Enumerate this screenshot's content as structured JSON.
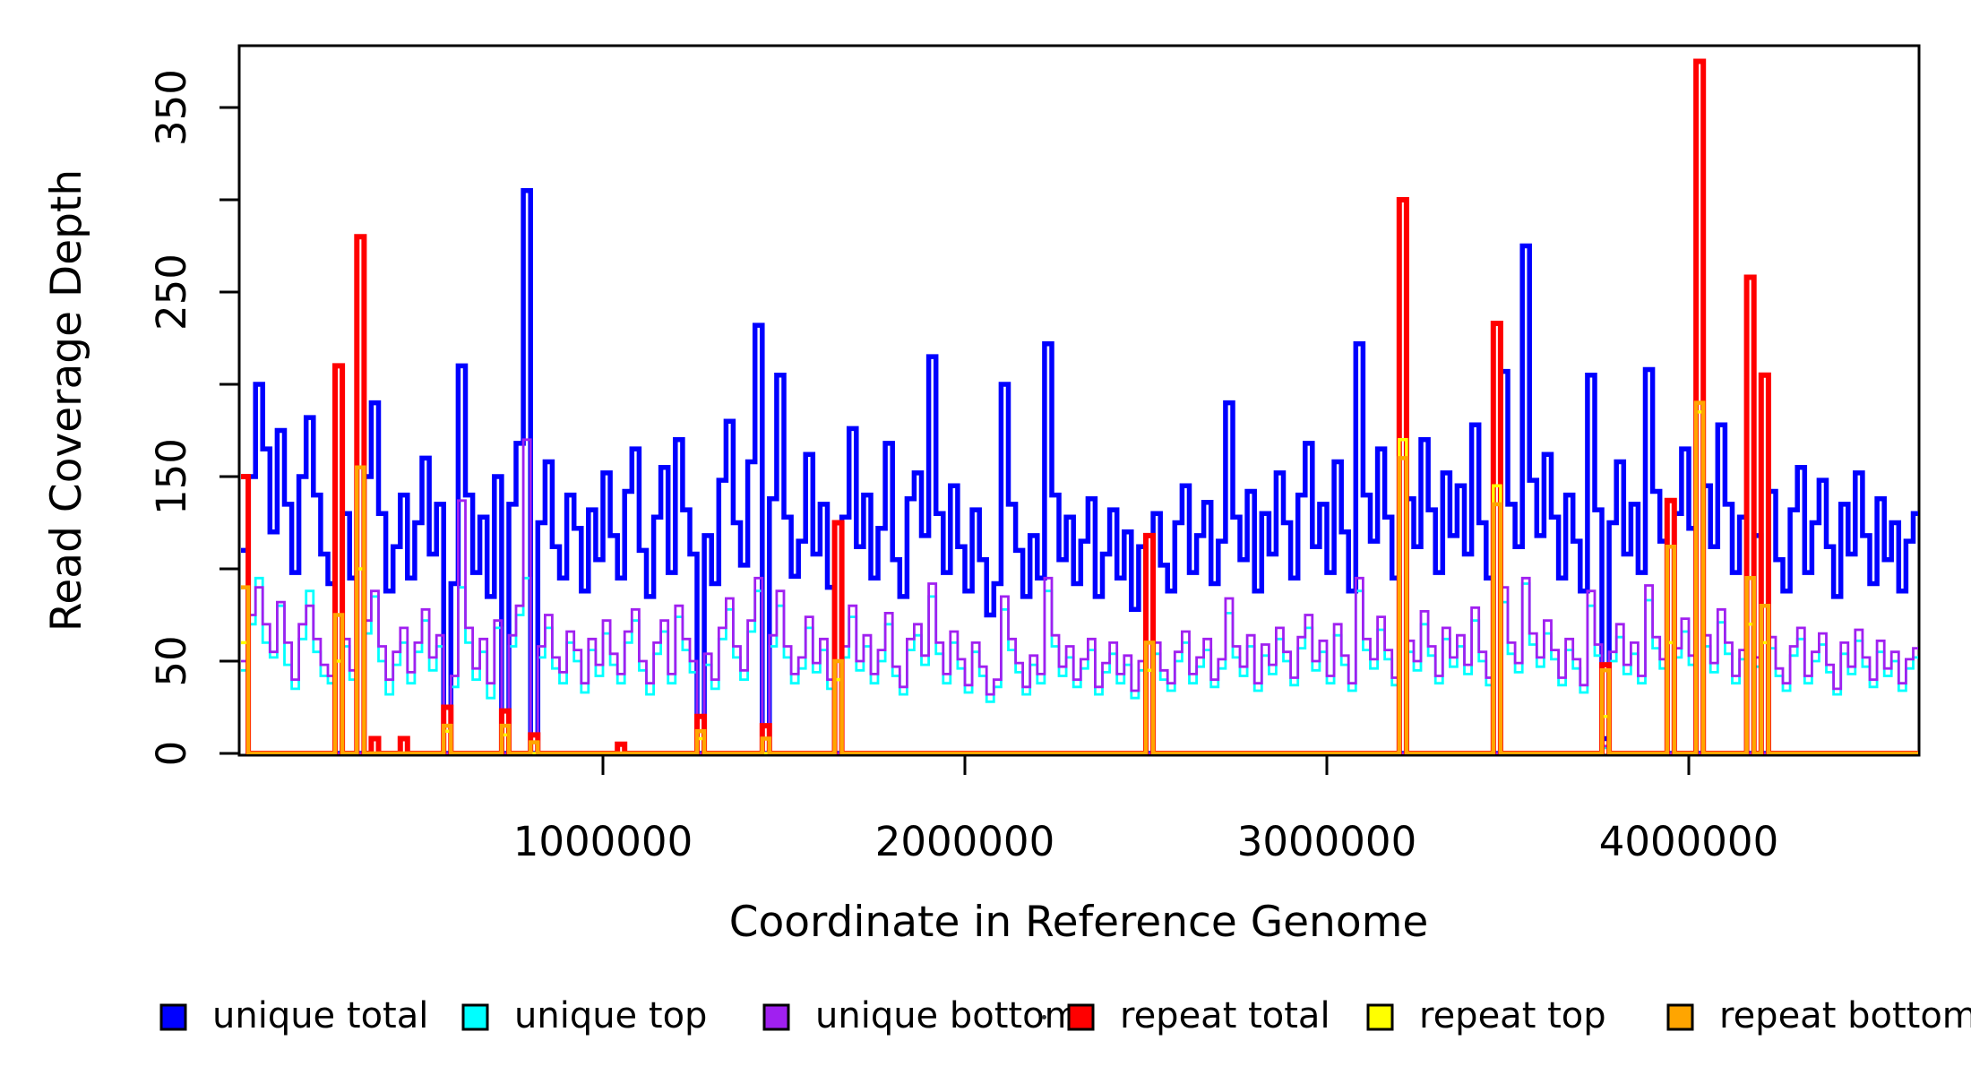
{
  "chart_data": {
    "type": "line",
    "subtype": "step-coverage-plot",
    "title": "",
    "xlabel": "Coordinate in Reference Genome",
    "ylabel": "Read Coverage Depth",
    "x_range": [
      0,
      4640000
    ],
    "y_range": [
      0,
      383
    ],
    "grid": false,
    "x_window_size": 20000,
    "n_windows": 232,
    "x_ticks": [
      {
        "v": 1000000,
        "label": "1000000"
      },
      {
        "v": 2000000,
        "label": "2000000"
      },
      {
        "v": 3000000,
        "label": "3000000"
      },
      {
        "v": 4000000,
        "label": "4000000"
      }
    ],
    "y_ticks": [
      {
        "v": 0,
        "label": "0"
      },
      {
        "v": 50,
        "label": "50"
      },
      {
        "v": 100,
        "label": ""
      },
      {
        "v": 150,
        "label": "150"
      },
      {
        "v": 200,
        "label": ""
      },
      {
        "v": 250,
        "label": "250"
      },
      {
        "v": 300,
        "label": ""
      },
      {
        "v": 350,
        "label": "350"
      }
    ],
    "legend": {
      "position": "bottom",
      "entries": [
        "unique total",
        "unique top",
        "unique bottom",
        "repeat total",
        "repeat top",
        "repeat bottom"
      ]
    },
    "series": [
      {
        "name": "unique total",
        "color": "#0000FF",
        "values": [
          110,
          150,
          200,
          165,
          120,
          175,
          135,
          98,
          150,
          182,
          140,
          108,
          92,
          0,
          130,
          95,
          0,
          150,
          190,
          130,
          88,
          112,
          140,
          95,
          125,
          160,
          108,
          135,
          0,
          92,
          210,
          140,
          98,
          128,
          85,
          150,
          0,
          135,
          168,
          305,
          0,
          125,
          158,
          112,
          95,
          140,
          122,
          88,
          132,
          105,
          152,
          118,
          95,
          142,
          165,
          110,
          85,
          128,
          155,
          98,
          170,
          132,
          108,
          0,
          118,
          92,
          148,
          180,
          125,
          102,
          158,
          232,
          0,
          138,
          205,
          128,
          96,
          115,
          162,
          108,
          135,
          90,
          0,
          128,
          176,
          112,
          140,
          95,
          122,
          168,
          105,
          85,
          138,
          152,
          118,
          215,
          130,
          98,
          145,
          112,
          88,
          132,
          105,
          75,
          92,
          200,
          135,
          110,
          85,
          118,
          95,
          222,
          140,
          105,
          128,
          92,
          115,
          138,
          85,
          108,
          132,
          95,
          120,
          78,
          112,
          0,
          130,
          102,
          88,
          125,
          145,
          98,
          118,
          136,
          92,
          115,
          190,
          128,
          105,
          142,
          88,
          130,
          108,
          152,
          125,
          95,
          140,
          168,
          112,
          135,
          98,
          158,
          120,
          88,
          222,
          140,
          115,
          165,
          128,
          95,
          0,
          138,
          112,
          170,
          132,
          98,
          152,
          118,
          145,
          108,
          178,
          125,
          95,
          0,
          207,
          135,
          112,
          275,
          148,
          118,
          162,
          128,
          95,
          140,
          115,
          88,
          205,
          132,
          8,
          125,
          158,
          108,
          135,
          98,
          208,
          142,
          115,
          0,
          130,
          165,
          122,
          0,
          145,
          112,
          178,
          135,
          98,
          128,
          0,
          118,
          0,
          142,
          105,
          88,
          132,
          155,
          98,
          125,
          148,
          112,
          85,
          135,
          108,
          152,
          118,
          92,
          138,
          105,
          125,
          88,
          115,
          130
        ]
      },
      {
        "name": "unique top",
        "color": "#00FFFF",
        "values": [
          45,
          70,
          95,
          60,
          52,
          80,
          48,
          35,
          62,
          88,
          55,
          42,
          38,
          0,
          58,
          40,
          0,
          65,
          85,
          50,
          32,
          48,
          60,
          38,
          55,
          72,
          45,
          58,
          0,
          36,
          90,
          60,
          40,
          55,
          30,
          68,
          0,
          58,
          75,
          95,
          0,
          52,
          68,
          46,
          38,
          60,
          50,
          33,
          56,
          42,
          65,
          48,
          38,
          60,
          72,
          45,
          32,
          54,
          66,
          38,
          74,
          56,
          44,
          0,
          48,
          35,
          62,
          78,
          52,
          40,
          66,
          88,
          0,
          58,
          80,
          52,
          38,
          46,
          68,
          44,
          56,
          35,
          0,
          52,
          74,
          45,
          58,
          38,
          50,
          70,
          42,
          32,
          56,
          64,
          48,
          85,
          54,
          38,
          60,
          46,
          33,
          55,
          42,
          28,
          36,
          78,
          56,
          44,
          32,
          48,
          38,
          88,
          58,
          42,
          52,
          36,
          46,
          56,
          32,
          44,
          54,
          38,
          48,
          30,
          45,
          0,
          54,
          40,
          34,
          50,
          60,
          38,
          47,
          56,
          36,
          46,
          76,
          52,
          42,
          58,
          34,
          53,
          43,
          62,
          50,
          37,
          57,
          68,
          45,
          55,
          38,
          64,
          48,
          34,
          88,
          56,
          46,
          67,
          51,
          37,
          0,
          55,
          45,
          70,
          53,
          38,
          62,
          47,
          58,
          43,
          72,
          50,
          37,
          0,
          82,
          54,
          44,
          92,
          59,
          47,
          65,
          51,
          37,
          56,
          46,
          33,
          80,
          53,
          3,
          50,
          63,
          43,
          54,
          38,
          83,
          57,
          46,
          0,
          52,
          66,
          48,
          0,
          58,
          44,
          71,
          54,
          38,
          51,
          0,
          47,
          0,
          57,
          42,
          34,
          53,
          62,
          38,
          50,
          59,
          44,
          32,
          54,
          43,
          61,
          47,
          36,
          55,
          42,
          50,
          34,
          46,
          52
        ]
      },
      {
        "name": "unique bottom",
        "color": "#A020F0",
        "values": [
          50,
          75,
          90,
          70,
          55,
          82,
          60,
          40,
          70,
          80,
          62,
          48,
          42,
          0,
          62,
          45,
          0,
          72,
          88,
          58,
          40,
          55,
          68,
          44,
          60,
          78,
          52,
          64,
          0,
          42,
          137,
          68,
          46,
          62,
          38,
          72,
          0,
          64,
          80,
          170,
          0,
          58,
          75,
          52,
          44,
          66,
          56,
          38,
          62,
          48,
          72,
          54,
          43,
          66,
          78,
          50,
          38,
          60,
          72,
          43,
          80,
          62,
          50,
          0,
          54,
          40,
          68,
          84,
          58,
          45,
          72,
          95,
          0,
          64,
          88,
          58,
          43,
          52,
          74,
          49,
          62,
          40,
          0,
          58,
          80,
          50,
          64,
          43,
          56,
          76,
          47,
          36,
          62,
          70,
          53,
          92,
          60,
          43,
          66,
          51,
          37,
          60,
          47,
          32,
          40,
          85,
          62,
          49,
          36,
          53,
          43,
          95,
          64,
          47,
          58,
          40,
          51,
          62,
          36,
          49,
          60,
          43,
          53,
          34,
          50,
          0,
          60,
          45,
          38,
          55,
          66,
          43,
          52,
          62,
          40,
          51,
          84,
          58,
          47,
          64,
          38,
          59,
          48,
          68,
          55,
          41,
          63,
          75,
          50,
          61,
          42,
          70,
          53,
          38,
          95,
          62,
          51,
          74,
          56,
          41,
          0,
          61,
          50,
          77,
          58,
          42,
          68,
          52,
          64,
          48,
          79,
          55,
          41,
          0,
          90,
          60,
          49,
          95,
          65,
          52,
          72,
          56,
          41,
          62,
          51,
          37,
          88,
          59,
          4,
          55,
          70,
          48,
          60,
          42,
          91,
          63,
          51,
          0,
          57,
          73,
          53,
          0,
          64,
          49,
          78,
          60,
          42,
          56,
          0,
          52,
          0,
          63,
          46,
          38,
          58,
          68,
          42,
          55,
          65,
          48,
          35,
          60,
          47,
          67,
          52,
          40,
          61,
          46,
          55,
          38,
          51,
          57
        ]
      },
      {
        "name": "repeat total",
        "color": "#FF0000",
        "baseline": 0,
        "spikes": {
          "0": 150,
          "13": 210,
          "16": 280,
          "18": 8,
          "22": 8,
          "28": 25,
          "36": 23,
          "40": 10,
          "52": 5,
          "63": 20,
          "72": 15,
          "82": 125,
          "125": 118,
          "160": 300,
          "173": 233,
          "188": 48,
          "197": 137,
          "201": 375,
          "208": 258,
          "210": 205
        }
      },
      {
        "name": "repeat top",
        "color": "#FFFF00",
        "baseline": 0,
        "spikes": {
          "0": 60,
          "13": 50,
          "16": 100,
          "28": 12,
          "36": 10,
          "63": 8,
          "82": 40,
          "125": 45,
          "160": 170,
          "173": 145,
          "188": 20,
          "197": 60,
          "201": 185,
          "208": 70,
          "210": 60
        }
      },
      {
        "name": "repeat bottom",
        "color": "#FFA500",
        "baseline": 0,
        "spikes": {
          "0": 90,
          "13": 75,
          "16": 155,
          "28": 15,
          "36": 15,
          "40": 6,
          "63": 12,
          "72": 8,
          "82": 50,
          "125": 60,
          "160": 160,
          "173": 135,
          "188": 45,
          "197": 112,
          "201": 190,
          "208": 95,
          "210": 80
        }
      }
    ]
  }
}
